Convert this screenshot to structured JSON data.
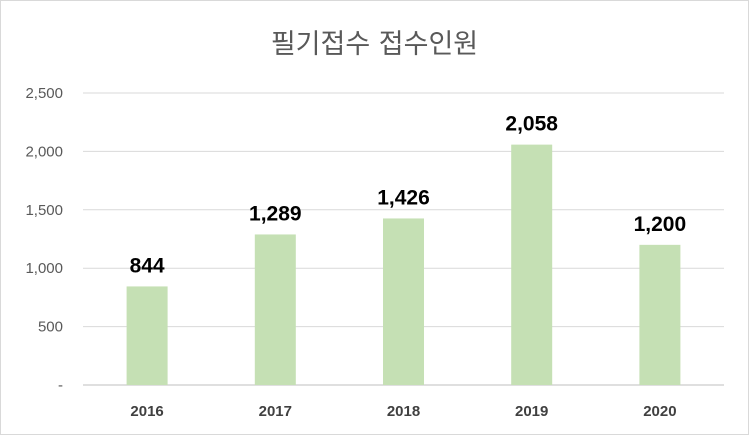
{
  "title": "필기접수 접수인원",
  "colors": {
    "bar": "#c5e0b4",
    "grid": "#d9d9d9",
    "axis": "#bfbfbf"
  },
  "chart_data": {
    "type": "bar",
    "title": "필기접수 접수인원",
    "categories": [
      "2016",
      "2017",
      "2018",
      "2019",
      "2020"
    ],
    "values": [
      844,
      1289,
      1426,
      2058,
      1200
    ],
    "data_labels": [
      "844",
      "1,289",
      "1,426",
      "2,058",
      "1,200"
    ],
    "ylim": [
      0,
      2500
    ],
    "yticks": [
      0,
      500,
      1000,
      1500,
      2000,
      2500
    ],
    "ytick_labels": [
      "-",
      "500",
      "1,000",
      "1,500",
      "2,000",
      "2,500"
    ],
    "grid": true,
    "xlabel": "",
    "ylabel": ""
  }
}
